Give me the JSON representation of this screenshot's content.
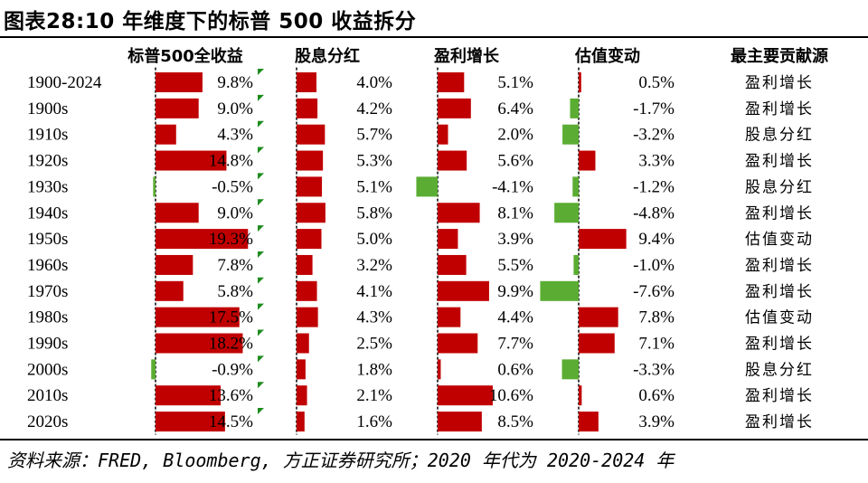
{
  "title": "图表28:10 年维度下的标普 500 收益拆分",
  "source": "资料来源：FRED, Bloomberg, 方正证券研究所；2020 年代为 2020-2024 年",
  "colors": {
    "positive": "#c00000",
    "negative": "#5aad32",
    "flag": "#1e8c1e",
    "text": "#000000"
  },
  "chart_data": {
    "type": "table",
    "columns": [
      "标普500全收益",
      "股息分红",
      "盈利增长",
      "估值变动",
      "最主要贡献源"
    ],
    "rows": [
      {
        "period": "1900-2024",
        "total": 9.8,
        "div": 4.0,
        "earn": 5.1,
        "val": 0.5,
        "src": "盈利增长"
      },
      {
        "period": "1900s",
        "total": 9.0,
        "div": 4.2,
        "earn": 6.4,
        "val": -1.7,
        "src": "盈利增长"
      },
      {
        "period": "1910s",
        "total": 4.3,
        "div": 5.7,
        "earn": 2.0,
        "val": -3.2,
        "src": "股息分红"
      },
      {
        "period": "1920s",
        "total": 14.8,
        "div": 5.3,
        "earn": 5.6,
        "val": 3.3,
        "src": "盈利增长"
      },
      {
        "period": "1930s",
        "total": -0.5,
        "div": 5.1,
        "earn": -4.1,
        "val": -1.2,
        "src": "股息分红"
      },
      {
        "period": "1940s",
        "total": 9.0,
        "div": 5.8,
        "earn": 8.1,
        "val": -4.8,
        "src": "盈利增长"
      },
      {
        "period": "1950s",
        "total": 19.3,
        "div": 5.0,
        "earn": 3.9,
        "val": 9.4,
        "src": "估值变动"
      },
      {
        "period": "1960s",
        "total": 7.8,
        "div": 3.2,
        "earn": 5.5,
        "val": -1.0,
        "src": "盈利增长"
      },
      {
        "period": "1970s",
        "total": 5.8,
        "div": 4.1,
        "earn": 9.9,
        "val": -7.6,
        "src": "盈利增长"
      },
      {
        "period": "1980s",
        "total": 17.5,
        "div": 4.3,
        "earn": 4.4,
        "val": 7.8,
        "src": "估值变动"
      },
      {
        "period": "1990s",
        "total": 18.2,
        "div": 2.5,
        "earn": 7.7,
        "val": 7.1,
        "src": "盈利增长"
      },
      {
        "period": "2000s",
        "total": -0.9,
        "div": 1.8,
        "earn": 0.6,
        "val": -3.3,
        "src": "股息分红"
      },
      {
        "period": "2010s",
        "total": 13.6,
        "div": 2.1,
        "earn": 10.6,
        "val": 0.6,
        "src": "盈利增长"
      },
      {
        "period": "2020s",
        "total": 14.5,
        "div": 1.6,
        "earn": 8.5,
        "val": 3.9,
        "src": "盈利增长"
      }
    ]
  }
}
